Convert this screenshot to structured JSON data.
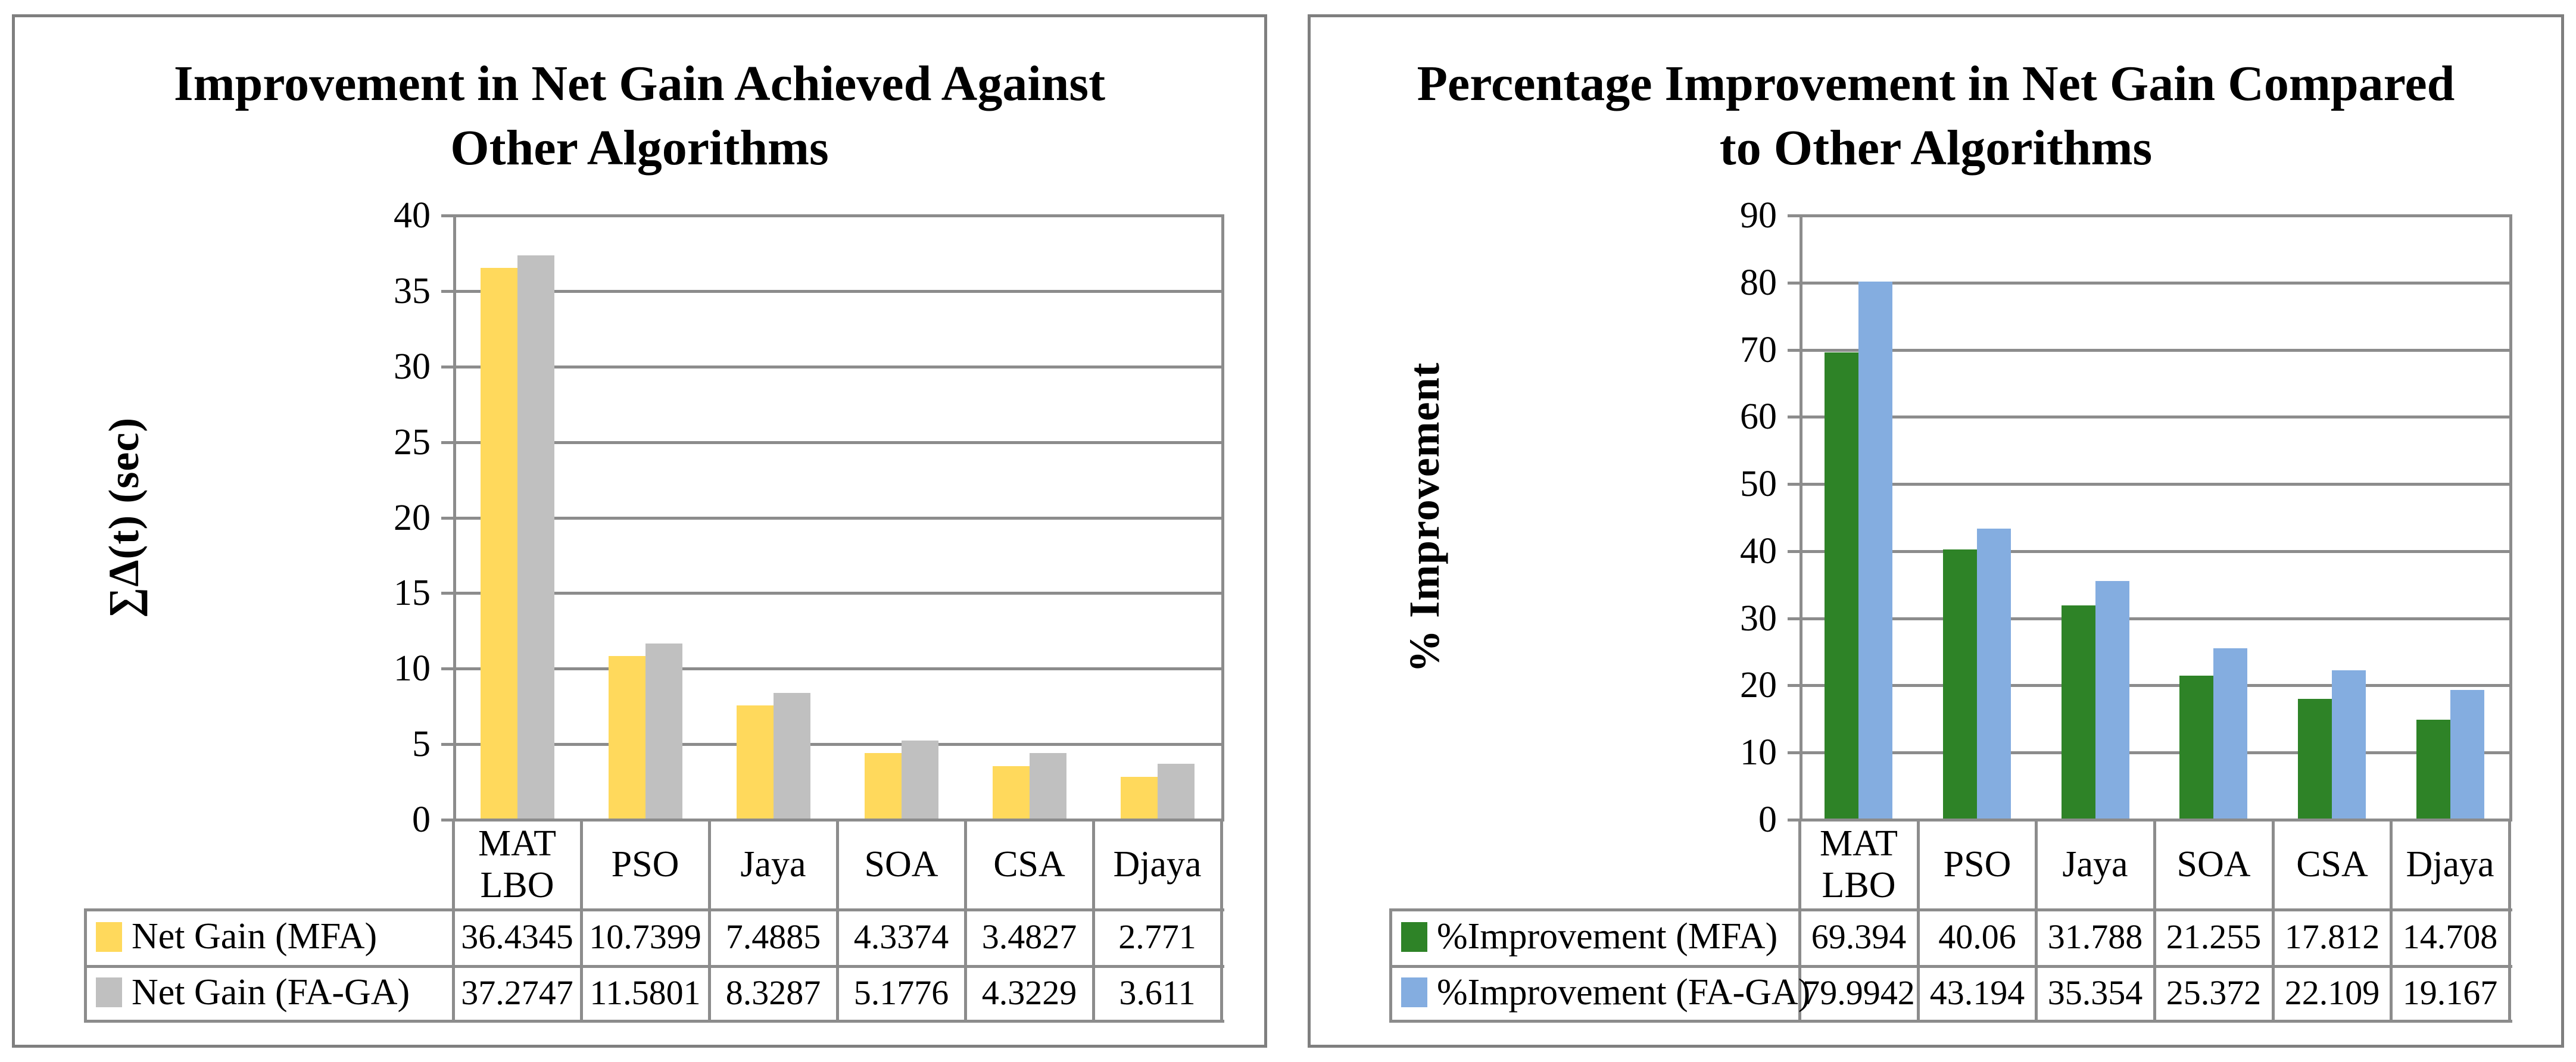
{
  "chart_data": [
    {
      "type": "bar",
      "title": "Improvement in Net Gain Achieved Against\nOther Algorithms",
      "ylabel": "∑Δ(t) (sec)",
      "xlabel": "",
      "categories": [
        "MAT LBO",
        "PSO",
        "Jaya",
        "SOA",
        "CSA",
        "Djaya"
      ],
      "series": [
        {
          "name": "Net Gain (MFA)",
          "color": "#FFD95C",
          "values": [
            36.4345,
            10.7399,
            7.4885,
            4.3374,
            3.4827,
            2.771
          ]
        },
        {
          "name": "Net Gain (FA-GA)",
          "color": "#C0C0C0",
          "values": [
            37.2747,
            11.5801,
            8.3287,
            5.1776,
            4.3229,
            3.611
          ]
        }
      ],
      "ylim": [
        0,
        40
      ],
      "ytick_step": 5,
      "ytick_labels": [
        "0",
        "5",
        "10",
        "15",
        "20",
        "25",
        "30",
        "35",
        "40"
      ],
      "grid": true,
      "legend_position": "data-table-left",
      "colors": {
        "gridline": "#8c8c8c",
        "panel_border": "#7f7f7f"
      }
    },
    {
      "type": "bar",
      "title": "Percentage Improvement in Net Gain Compared\nto Other Algorithms",
      "ylabel": "% Improvement",
      "xlabel": "",
      "categories": [
        "MAT LBO",
        "PSO",
        "Jaya",
        "SOA",
        "CSA",
        "Djaya"
      ],
      "series": [
        {
          "name": "%Improvement (MFA)",
          "color": "#2E8327",
          "values": [
            69.394,
            40.06,
            31.788,
            21.255,
            17.812,
            14.708
          ]
        },
        {
          "name": "%Improvement (FA-GA)",
          "color": "#84ADE0",
          "values": [
            79.9942,
            43.194,
            35.354,
            25.372,
            22.109,
            19.167
          ]
        }
      ],
      "ylim": [
        0,
        90
      ],
      "ytick_step": 10,
      "ytick_labels": [
        "0",
        "10",
        "20",
        "30",
        "40",
        "50",
        "60",
        "70",
        "80",
        "90"
      ],
      "grid": true,
      "legend_position": "data-table-left",
      "colors": {
        "gridline": "#8c8c8c",
        "panel_border": "#7f7f7f"
      }
    }
  ]
}
